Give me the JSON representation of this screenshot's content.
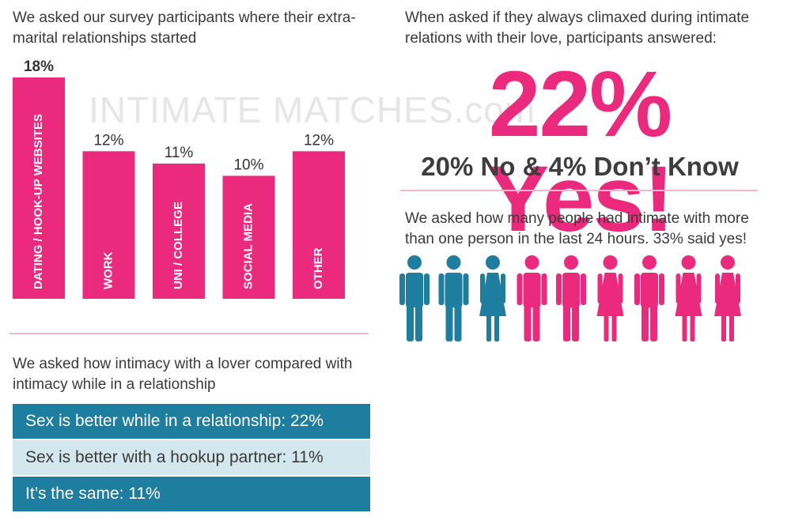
{
  "left_section": {
    "intro": "We asked our survey participants where their extra-marital relationships started",
    "watermark": "INTIMATE MATCHES.com"
  },
  "chart_data": {
    "type": "bar",
    "categories": [
      "DATING / HOOK-UP WEBSITES",
      "WORK",
      "UNI / COLLEGE",
      "SOCIAL MEDIA",
      "OTHER"
    ],
    "values": [
      18,
      12,
      11,
      10,
      12
    ],
    "value_labels": [
      "18%",
      "12%",
      "11%",
      "10%",
      "12%"
    ],
    "ylim": [
      0,
      18
    ],
    "grid": false,
    "colors": {
      "bar": "#ec2a7d"
    }
  },
  "climax": {
    "intro": "When asked if they always climaxed during intimate relations with their love, participants answered:",
    "headline": "22% Yes!",
    "subline": "20% No & 4% Don’t Know"
  },
  "partners": {
    "intro": "We asked how many people had intimate with more than one person in the last 24 hours. 33% said yes!",
    "figures": [
      "male",
      "male",
      "female",
      "male",
      "male",
      "female",
      "male",
      "female",
      "female"
    ],
    "highlighted_count": 3,
    "colors": {
      "highlight": "#1d7ea0",
      "rest": "#ec2a7d"
    }
  },
  "comparison": {
    "intro": "We asked how intimacy with a lover compared with intimacy while in a relationship",
    "items": [
      "Sex is better while in a relationship: 22%",
      "Sex is better with a hookup partner: 11%",
      "It’s the same: 11%"
    ]
  }
}
